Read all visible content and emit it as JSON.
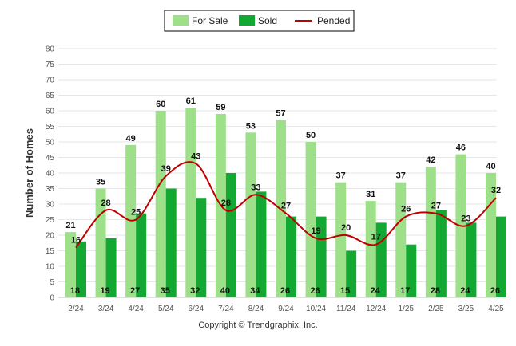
{
  "chart_data": {
    "type": "bar",
    "ylabel": "Number of Homes",
    "ylim": [
      0,
      80
    ],
    "yticks": [
      0,
      5,
      10,
      15,
      20,
      25,
      30,
      35,
      40,
      45,
      50,
      55,
      60,
      65,
      70,
      75,
      80
    ],
    "categories": [
      "2/24",
      "3/24",
      "4/24",
      "5/24",
      "6/24",
      "7/24",
      "8/24",
      "9/24",
      "10/24",
      "11/24",
      "12/24",
      "1/25",
      "2/25",
      "3/25",
      "4/25"
    ],
    "series": [
      {
        "name": "For Sale",
        "type": "bar",
        "color": "#9ee08a",
        "values": [
          21,
          35,
          49,
          60,
          61,
          59,
          53,
          57,
          50,
          37,
          31,
          37,
          42,
          46,
          40
        ]
      },
      {
        "name": "Sold",
        "type": "bar",
        "color": "#13a832",
        "values": [
          18,
          19,
          27,
          35,
          32,
          40,
          34,
          26,
          26,
          15,
          24,
          17,
          28,
          24,
          26
        ]
      },
      {
        "name": "Pended",
        "type": "line",
        "color": "#c00000",
        "values": [
          16,
          28,
          25,
          39,
          43,
          28,
          33,
          27,
          19,
          20,
          17,
          26,
          27,
          23,
          32
        ]
      }
    ],
    "legend_position": "top-center",
    "grid": true
  },
  "footer": {
    "copyright": "Copyright © Trendgraphix, Inc."
  }
}
